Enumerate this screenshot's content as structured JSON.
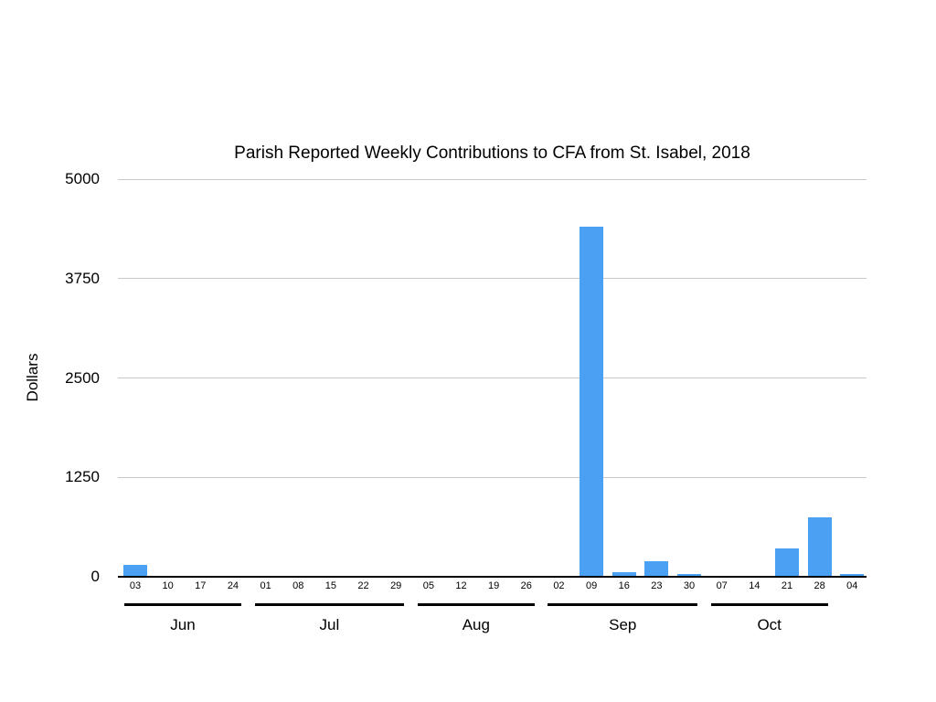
{
  "page": {
    "background": "#ffffff"
  },
  "chart_data": {
    "type": "bar",
    "title": "Parish Reported Weekly Contributions to CFA from St. Isabel, 2018",
    "xlabel": "",
    "ylabel": "Dollars",
    "ylim": [
      0,
      5000
    ],
    "yticks": [
      0,
      1250,
      2500,
      3750,
      5000
    ],
    "grid": true,
    "legend": "none",
    "colors": {
      "bar": "#4aa0f3",
      "gridline": "#c8c8c8",
      "axis": "#000000",
      "text": "#000000",
      "background": "#ffffff"
    },
    "groups": [
      {
        "month": "Jun",
        "weeks": [
          "03",
          "10",
          "17",
          "24"
        ],
        "values": [
          150,
          0,
          0,
          0
        ]
      },
      {
        "month": "Jul",
        "weeks": [
          "01",
          "08",
          "15",
          "22",
          "29"
        ],
        "values": [
          0,
          0,
          0,
          0,
          0
        ]
      },
      {
        "month": "Aug",
        "weeks": [
          "05",
          "12",
          "19",
          "26"
        ],
        "values": [
          0,
          0,
          0,
          0
        ]
      },
      {
        "month": "Sep",
        "weeks": [
          "02",
          "09",
          "16",
          "23",
          "30"
        ],
        "values": [
          0,
          4400,
          60,
          200,
          35
        ]
      },
      {
        "month": "Oct",
        "weeks": [
          "07",
          "14",
          "21",
          "28"
        ],
        "values": [
          0,
          0,
          360,
          750
        ]
      },
      {
        "month": "",
        "weeks": [
          "04"
        ],
        "values": [
          40
        ]
      }
    ]
  }
}
